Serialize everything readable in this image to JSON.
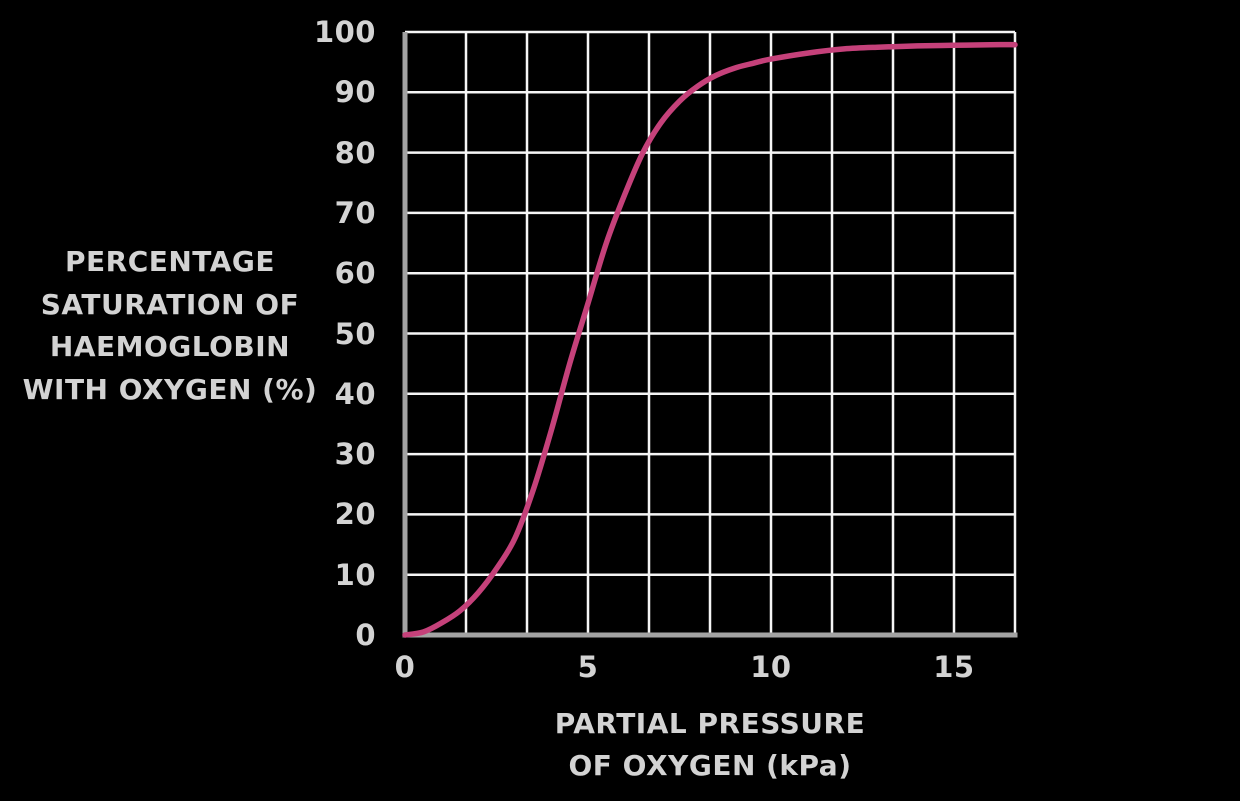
{
  "colors": {
    "background": "#000000",
    "grid": "#f5f5f5",
    "axis": "#a3a3a3",
    "curve": "#c5417a",
    "text": "#d3d3d3"
  },
  "y_axis_title_lines": [
    "PERCENTAGE",
    "SATURATION OF",
    "HAEMOGLOBIN",
    "WITH OXYGEN (%)"
  ],
  "x_axis_title_lines": [
    "PARTIAL PRESSURE",
    "OF OXYGEN (kPa)"
  ],
  "chart_data": {
    "type": "line",
    "title": "",
    "xlabel": "PARTIAL PRESSURE OF OXYGEN (kPa)",
    "ylabel": "PERCENTAGE SATURATION OF HAEMOGLOBIN WITH OXYGEN (%)",
    "xlim": [
      0,
      16.67
    ],
    "ylim": [
      0,
      100
    ],
    "grid": {
      "on": true,
      "columns": 10,
      "rows": 10
    },
    "x_ticks": [
      {
        "value": 0,
        "label": "0"
      },
      {
        "value": 5,
        "label": "5"
      },
      {
        "value": 10,
        "label": "10"
      },
      {
        "value": 15,
        "label": "15"
      }
    ],
    "y_ticks": [
      {
        "value": 0,
        "label": "0"
      },
      {
        "value": 10,
        "label": "10"
      },
      {
        "value": 20,
        "label": "20"
      },
      {
        "value": 30,
        "label": "30"
      },
      {
        "value": 40,
        "label": "40"
      },
      {
        "value": 50,
        "label": "50"
      },
      {
        "value": 60,
        "label": "60"
      },
      {
        "value": 70,
        "label": "70"
      },
      {
        "value": 80,
        "label": "80"
      },
      {
        "value": 90,
        "label": "90"
      },
      {
        "value": 100,
        "label": "100"
      }
    ],
    "series": [
      {
        "name": "oxygen-haemoglobin-dissociation-curve",
        "color": "#c5417a",
        "points": [
          [
            0,
            0
          ],
          [
            0.5,
            0.5
          ],
          [
            1,
            2
          ],
          [
            1.5,
            4
          ],
          [
            2,
            7
          ],
          [
            2.5,
            11
          ],
          [
            3,
            16
          ],
          [
            3.5,
            24
          ],
          [
            4,
            34
          ],
          [
            4.5,
            45
          ],
          [
            5,
            55
          ],
          [
            5.5,
            65
          ],
          [
            6,
            73
          ],
          [
            6.5,
            80
          ],
          [
            7,
            85
          ],
          [
            7.5,
            88.5
          ],
          [
            8,
            91
          ],
          [
            8.5,
            92.8
          ],
          [
            9,
            94
          ],
          [
            9.5,
            94.8
          ],
          [
            10,
            95.5
          ],
          [
            11,
            96.5
          ],
          [
            12,
            97.2
          ],
          [
            13,
            97.5
          ],
          [
            14,
            97.7
          ],
          [
            15,
            97.8
          ],
          [
            16,
            97.9
          ],
          [
            16.67,
            97.9
          ]
        ]
      }
    ],
    "legend": "none"
  }
}
